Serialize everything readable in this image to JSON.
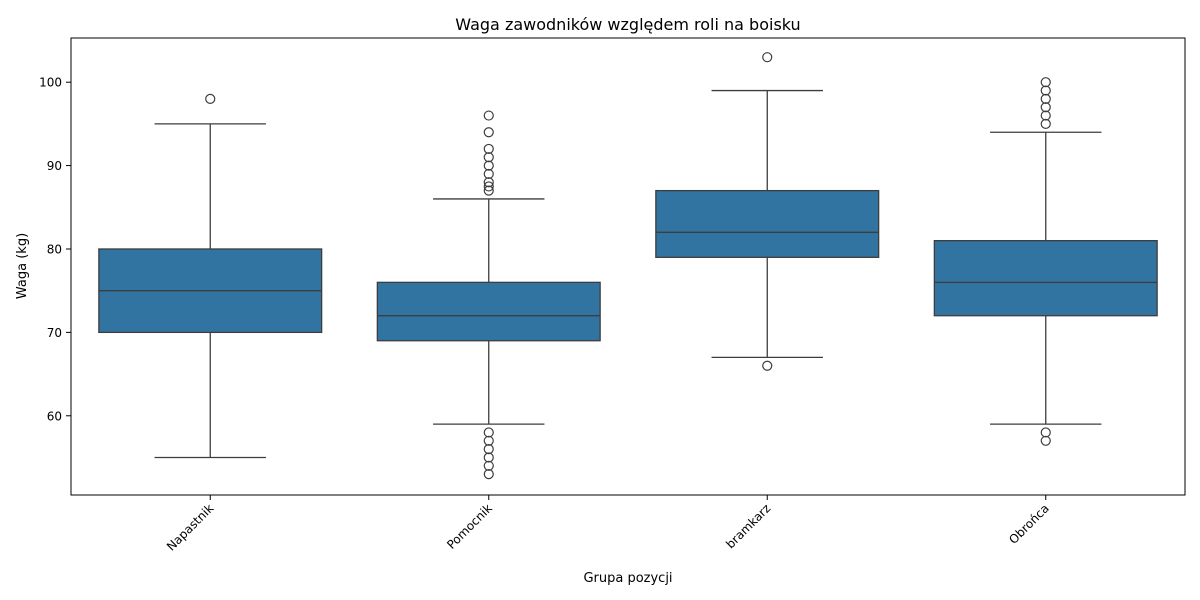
{
  "chart_data": {
    "type": "box",
    "title": "Waga zawodników względem roli na boisku",
    "xlabel": "Grupa pozycji",
    "ylabel": "Waga (kg)",
    "ylim": [
      50.5,
      105.3
    ],
    "yticks": [
      60,
      70,
      80,
      90,
      100
    ],
    "grid": false,
    "categories": [
      "Napastnik",
      "Pomocnik",
      "bramkarz",
      "Obrońca"
    ],
    "boxes": [
      {
        "category": "Napastnik",
        "whisker_low": 55,
        "q1": 70,
        "median": 75,
        "q3": 80,
        "whisker_high": 95,
        "outliers": [
          98
        ]
      },
      {
        "category": "Pomocnik",
        "whisker_low": 59,
        "q1": 69,
        "median": 72,
        "q3": 76,
        "whisker_high": 86,
        "outliers": [
          53,
          54,
          55,
          56,
          57,
          58,
          87,
          87.5,
          88,
          89,
          90,
          91,
          92,
          94,
          96
        ]
      },
      {
        "category": "bramkarz",
        "whisker_low": 67,
        "q1": 79,
        "median": 82,
        "q3": 87,
        "whisker_high": 99,
        "outliers": [
          66,
          103
        ]
      },
      {
        "category": "Obrońca",
        "whisker_low": 59,
        "q1": 72,
        "median": 76,
        "q3": 81,
        "whisker_high": 94,
        "outliers": [
          57,
          58,
          95,
          96,
          97,
          98,
          99,
          100
        ]
      }
    ],
    "colors": {
      "box_fill": "#3274a1",
      "line": "#3d3d3d",
      "axis": "#000000"
    }
  }
}
